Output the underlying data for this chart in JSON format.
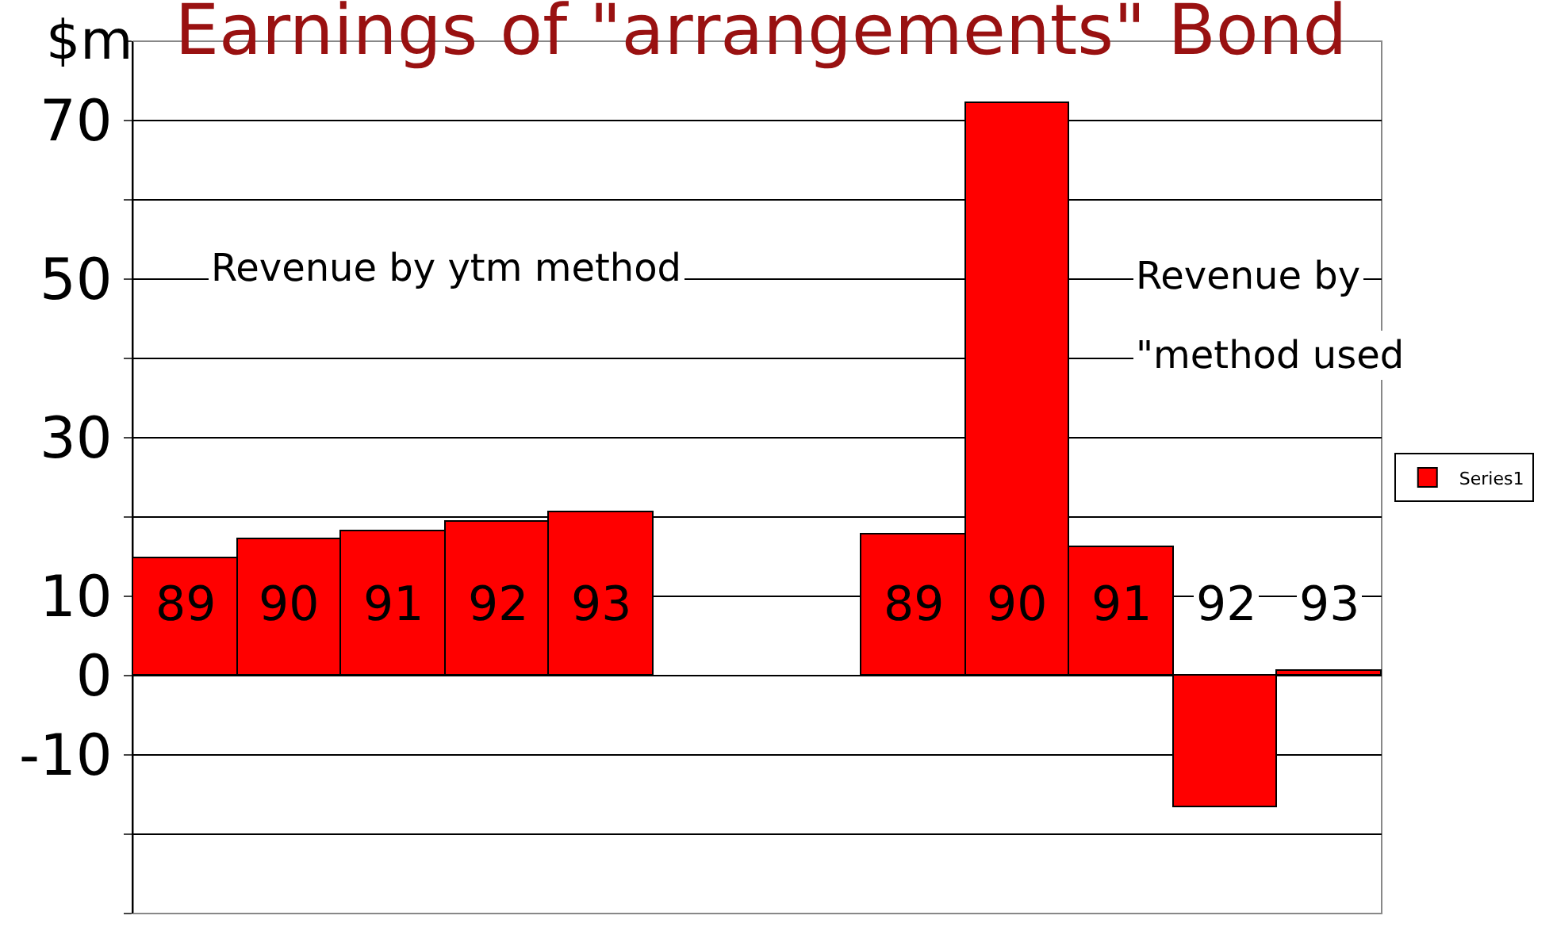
{
  "chart_data": {
    "type": "bar",
    "title": "Earnings of \"arrangements\" Bond",
    "ylabel": "$m",
    "categories": [
      "89",
      "90",
      "91",
      "92",
      "93",
      null,
      null,
      "89",
      "90",
      "91",
      "92",
      "93"
    ],
    "series": [
      {
        "name": "Series1",
        "color": "#ff0000",
        "values": [
          14.9,
          17.3,
          18.3,
          19.5,
          20.7,
          null,
          null,
          17.9,
          72.3,
          16.3,
          -16.5,
          0.7
        ]
      }
    ],
    "ylim": [
      -30,
      80
    ],
    "yticks": [
      {
        "value": -30,
        "label": null
      },
      {
        "value": -20,
        "label": null
      },
      -10,
      0,
      10,
      {
        "value": 20,
        "label": null
      },
      30,
      {
        "value": 40,
        "label": null
      },
      50,
      {
        "value": 60,
        "label": null
      },
      70,
      {
        "value": 80,
        "label": null
      }
    ],
    "grid": "y",
    "legend": "right",
    "annotations": [
      "Revenue by ytm method",
      "Revenue by",
      "\"method used"
    ]
  }
}
